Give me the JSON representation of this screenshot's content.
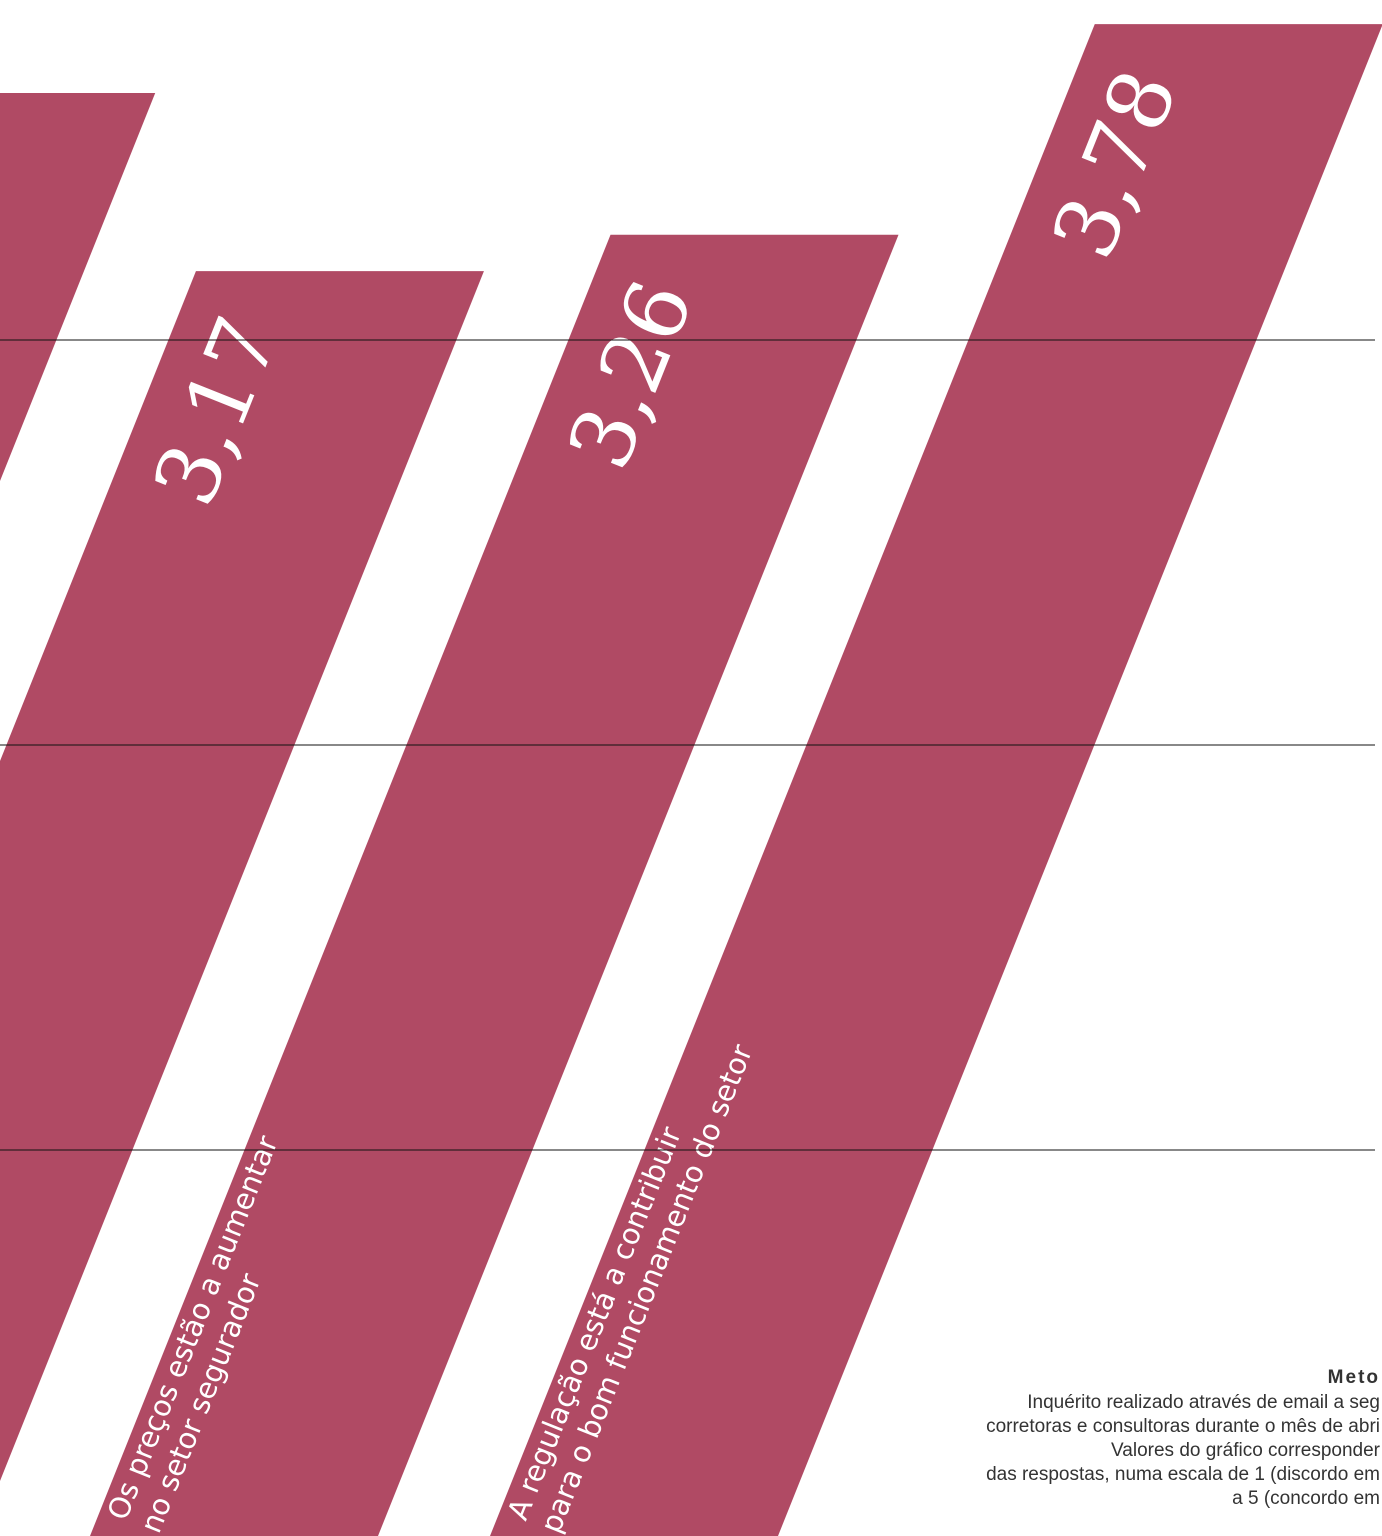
{
  "chart_data": {
    "type": "bar",
    "categories": [
      null,
      null,
      [
        "Os preços estão a aumentar",
        "no setor segurador"
      ],
      [
        "A regulação está a contribuir",
        "para o bom funcionamento do setor"
      ]
    ],
    "values": [
      3.61,
      3.17,
      3.26,
      3.78
    ],
    "value_labels": [
      null,
      "3,17",
      "3,26",
      "3,78"
    ],
    "color": "#b04a64",
    "ylim": [
      0,
      4
    ],
    "yticks": [
      1,
      2,
      3
    ],
    "grid": true,
    "note_title": "Meto",
    "note": [
      "Inquérito realizado através de email a seg",
      "corretoras e consultoras durante o mês de abri",
      "Valores do gráfico corresponder",
      "das respostas, numa escala de 1 (discordo em",
      "a 5 (concordo em"
    ]
  }
}
